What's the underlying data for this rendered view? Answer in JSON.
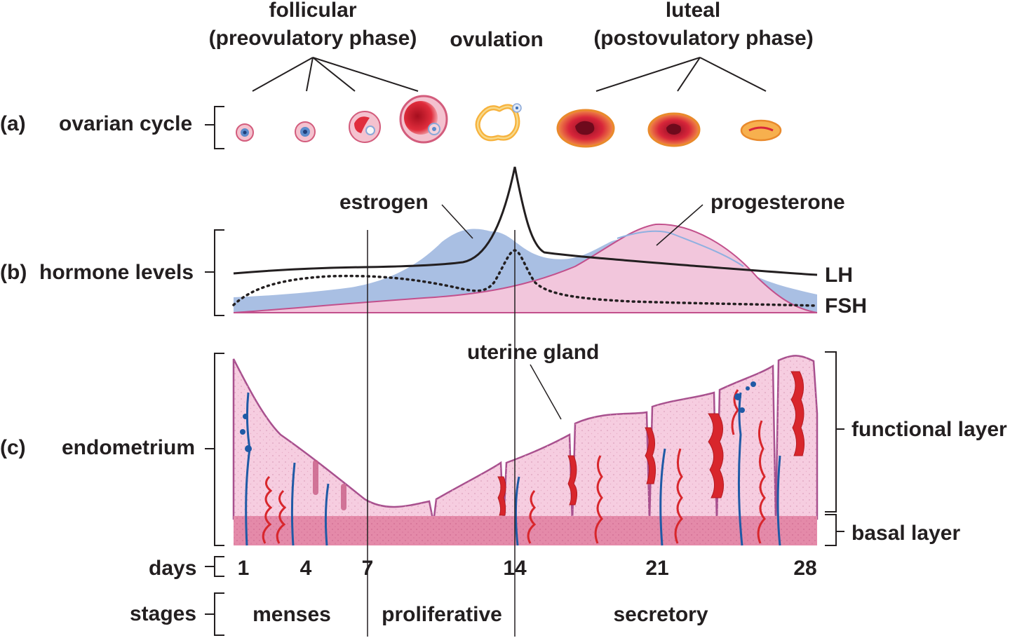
{
  "phases": {
    "follicular_line1": "follicular",
    "follicular_line2": "(preovulatory phase)",
    "ovulation": "ovulation",
    "luteal_line1": "luteal",
    "luteal_line2": "(postovulatory phase)"
  },
  "rows": {
    "a_letter": "(a)",
    "a_label": "ovarian cycle",
    "b_letter": "(b)",
    "b_label": "hormone levels",
    "c_letter": "(c)",
    "c_label": "endometrium"
  },
  "hormones": {
    "estrogen": "estrogen",
    "progesterone": "progesterone",
    "lh": "LH",
    "fsh": "FSH"
  },
  "endometrium": {
    "uterine_gland": "uterine gland",
    "functional_layer": "functional layer",
    "basal_layer": "basal layer"
  },
  "days": {
    "label": "days",
    "ticks": [
      "1",
      "4",
      "7",
      "14",
      "21",
      "28"
    ]
  },
  "stages": {
    "label": "stages",
    "menses": "menses",
    "proliferative": "proliferative",
    "secretory": "secretory"
  },
  "colors": {
    "estrogen_fill": "#a9bfe3",
    "progesterone_fill": "#f2c6dc",
    "progesterone_line": "#c2508c",
    "tissue": "#f6cde0",
    "basal": "#e48aa9",
    "vessel_red": "#d8262c",
    "vessel_blue": "#1f5aa6",
    "follicle_red": "#c8102e",
    "corpus_orange": "#f7a64a"
  }
}
